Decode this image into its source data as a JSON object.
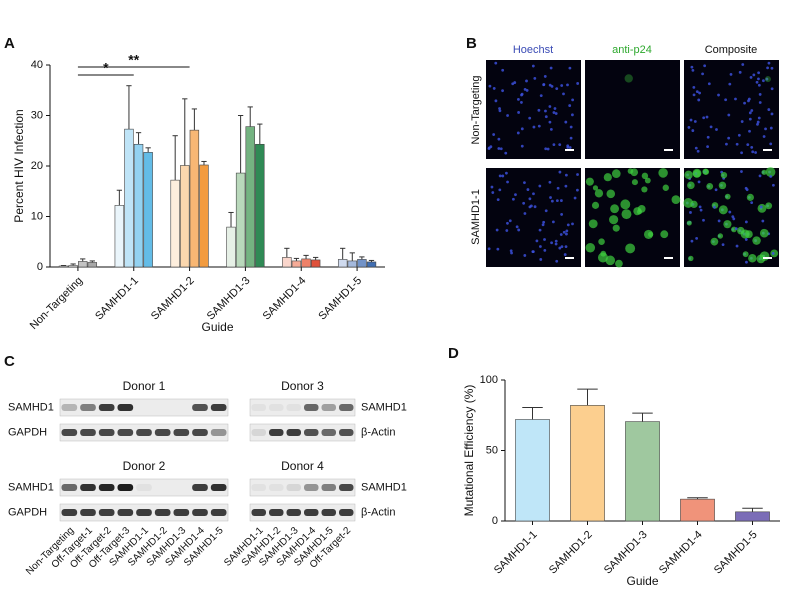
{
  "panel_labels": [
    "A",
    "B",
    "C",
    "D"
  ],
  "chart_data": [
    {
      "type": "bar",
      "y_label": "Percent HIV Infection",
      "x_label": "Guide",
      "categories": [
        "Non-Targeting",
        "SAMHD1-1",
        "SAMHD1-2",
        "SAMHD1-3",
        "SAMHD1-4",
        "SAMHD1-5"
      ],
      "series": [
        {
          "values": [
            0.2,
            12.2,
            17.2,
            7.9,
            1.9,
            1.5
          ],
          "errors": [
            0.1,
            3.0,
            8.8,
            2.9,
            1.8,
            2.2
          ]
        },
        {
          "values": [
            0.3,
            27.3,
            20.1,
            18.6,
            1.2,
            1.2
          ],
          "errors": [
            0.3,
            8.6,
            13.2,
            11.4,
            0.5,
            1.6
          ]
        },
        {
          "values": [
            1.1,
            24.3,
            27.1,
            27.8,
            1.6,
            1.5
          ],
          "errors": [
            0.5,
            2.3,
            4.2,
            3.9,
            0.7,
            0.5
          ]
        },
        {
          "values": [
            0.9,
            22.7,
            20.2,
            24.3,
            1.4,
            1.0
          ],
          "errors": [
            0.3,
            0.9,
            0.7,
            4.0,
            0.5,
            0.3
          ]
        }
      ],
      "category_colors": [
        [
          "#f2f2f2",
          "#dcdcdc",
          "#c4c4c4",
          "#a8a8a8"
        ],
        [
          "#eaf5fb",
          "#bfe4f7",
          "#93d2f1",
          "#63bce7"
        ],
        [
          "#fdeedd",
          "#fbd7ae",
          "#f8b774",
          "#f29b3f"
        ],
        [
          "#e6f0e6",
          "#b9d8bb",
          "#74b381",
          "#2f8a55"
        ],
        [
          "#fad6cc",
          "#f5ab97",
          "#ee8169",
          "#df513b"
        ],
        [
          "#cfdaee",
          "#a4b9dd",
          "#7293c8",
          "#3f6db1"
        ]
      ],
      "ylim": [
        0,
        40
      ],
      "yticks": [
        0,
        10,
        20,
        30,
        40
      ],
      "annotations": [
        "*",
        "**"
      ]
    },
    {
      "type": "bar",
      "y_label": "Mutational Efficiency (%)",
      "x_label": "Guide",
      "categories": [
        "SAMHD1-1",
        "SAMHD1-2",
        "SAMHD1-3",
        "SAMHD1-4",
        "SAMHD1-5"
      ],
      "values": [
        72,
        82,
        70.5,
        15.5,
        6.5
      ],
      "errors": [
        8.5,
        11.5,
        6,
        1,
        2.5
      ],
      "colors": [
        "#bfe6f8",
        "#fccf8f",
        "#9fc89f",
        "#f0937a",
        "#7b6db7"
      ],
      "ylim": [
        0,
        100
      ],
      "yticks": [
        0,
        50,
        100
      ]
    }
  ],
  "microscopy": {
    "columns": [
      "Hoechst",
      "anti-p24",
      "Composite"
    ],
    "rows": [
      "Non-Targeting",
      "SAMHD1-1"
    ]
  },
  "western_blot": {
    "blots": [
      {
        "title": "Donor 1",
        "proteins": [
          "SAMHD1",
          "GAPDH"
        ]
      },
      {
        "title": "Donor 3",
        "proteins": [
          "SAMHD1",
          "β-Actin"
        ]
      },
      {
        "title": "Donor 2",
        "proteins": [
          "SAMHD1",
          "GAPDH"
        ]
      },
      {
        "title": "Donor 4",
        "proteins": [
          "SAMHD1",
          "β-Actin"
        ]
      }
    ],
    "lanes_left": [
      "Non-Targeting",
      "Off-Target-1",
      "Off-Target-2",
      "Off-Target-3",
      "SAMHD1-1",
      "SAMHD1-2",
      "SAMHD1-3",
      "SAMHD1-4",
      "SAMHD1-5"
    ],
    "lanes_right": [
      "SAMHD1-1",
      "SAMHD1-2",
      "SAMHD1-3",
      "SAMHD1-4",
      "SAMHD1-5",
      "Off-Target-2"
    ]
  }
}
